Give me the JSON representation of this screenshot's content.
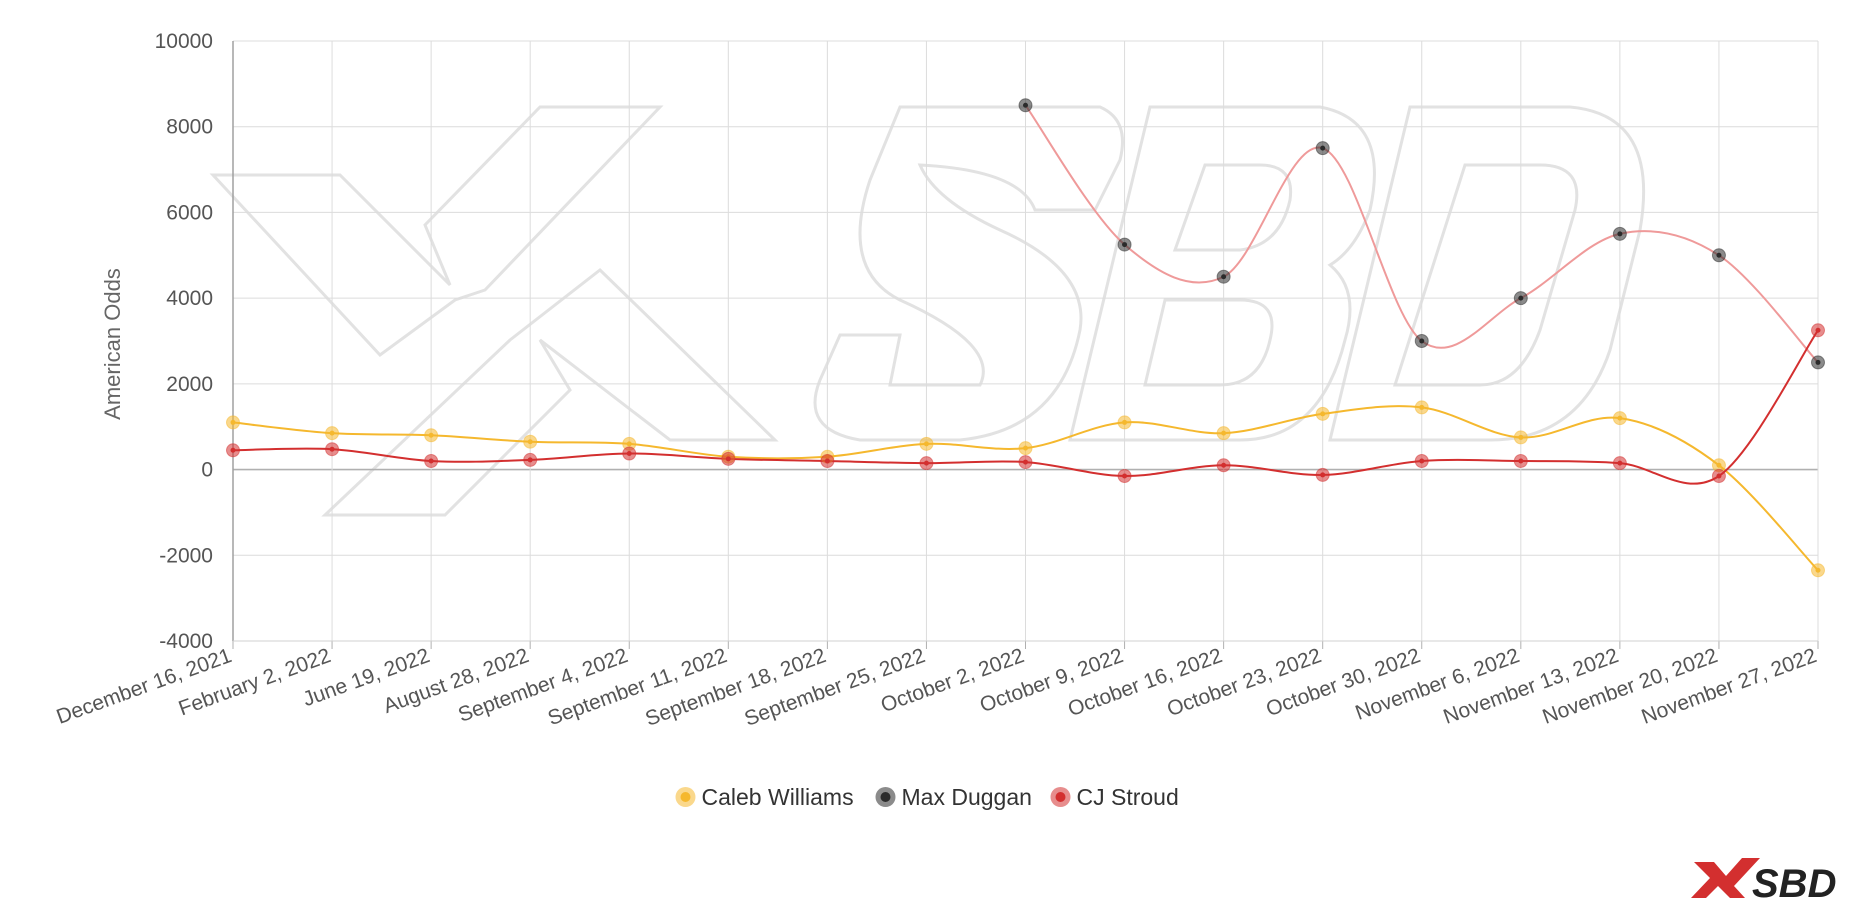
{
  "chart_data": {
    "type": "line",
    "title": "",
    "xlabel": "",
    "ylabel": "American Odds",
    "ylim": [
      -4000,
      10000
    ],
    "yticks": [
      10000,
      8000,
      6000,
      4000,
      2000,
      0,
      -2000,
      -4000
    ],
    "grid": true,
    "legend_position": "bottom-center",
    "categories": [
      "December 16, 2021",
      "February 2, 2022",
      "June 19, 2022",
      "August 28, 2022",
      "September 4, 2022",
      "September 11, 2022",
      "September 18, 2022",
      "September 25, 2022",
      "October 2, 2022",
      "October 9, 2022",
      "October 16, 2022",
      "October 23, 2022",
      "October 30, 2022",
      "November 6, 2022",
      "November 13, 2022",
      "November 20, 2022",
      "November 27, 2022"
    ],
    "series": [
      {
        "name": "Caleb Williams",
        "color": "#f5b82e",
        "values": [
          1100,
          850,
          800,
          650,
          600,
          300,
          300,
          600,
          500,
          1100,
          850,
          1300,
          1450,
          750,
          1200,
          100,
          -2350
        ]
      },
      {
        "name": "Max Duggan",
        "color": "#2b2b2b",
        "line_color": "#ef9a9a",
        "values": [
          null,
          null,
          null,
          null,
          null,
          null,
          null,
          null,
          8500,
          5250,
          4500,
          7500,
          3000,
          4000,
          5500,
          5000,
          2500
        ]
      },
      {
        "name": "CJ Stroud",
        "color": "#d32f2f",
        "values": [
          450,
          475,
          200,
          225,
          375,
          250,
          200,
          150,
          175,
          -150,
          100,
          -125,
          200,
          200,
          150,
          -150,
          3250
        ]
      }
    ]
  },
  "logo": {
    "text": "SBD"
  }
}
